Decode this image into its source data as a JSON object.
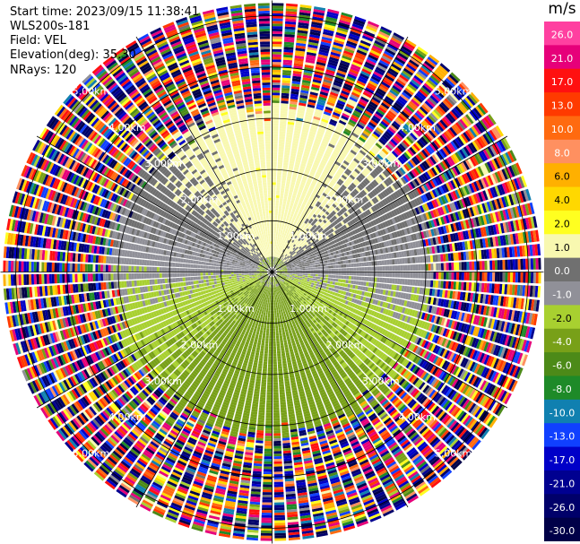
{
  "header": {
    "start_time": "Start time: 2023/09/15 11:38:41",
    "instrument": "WLS200s-181",
    "field": "Field: VEL",
    "elevation": "Elevation(deg): 35.30",
    "nrays": "NRays: 120"
  },
  "colorbar": {
    "unit": "m/s",
    "levels": [
      "26.0",
      "21.0",
      "17.0",
      "13.0",
      "10.0",
      "8.0",
      "6.0",
      "4.0",
      "2.0",
      "1.0",
      "0.0",
      "-1.0",
      "-2.0",
      "-4.0",
      "-6.0",
      "-8.0",
      "-10.0",
      "-13.0",
      "-17.0",
      "-21.0",
      "-26.0",
      "-30.0"
    ],
    "colors": [
      "#ff40a0",
      "#e6007a",
      "#ff1010",
      "#ff3a00",
      "#ff6a10",
      "#ff9060",
      "#ffb000",
      "#ffd800",
      "#ffff20",
      "#f8f8b0",
      "#707070",
      "#909098",
      "#a8d030",
      "#78a018",
      "#4c8a18",
      "#1e8a28",
      "#1080b0",
      "#1040ff",
      "#0000c8",
      "#000090",
      "#00006a",
      "#000048"
    ]
  },
  "chart_data": {
    "type": "heatmap",
    "subtype": "polar-ppi",
    "field": "VEL",
    "unit": "m/s",
    "elevation_deg": 35.3,
    "n_rays": 120,
    "max_range_km": 5.3,
    "range_rings": [
      {
        "km": 1.0,
        "label": "1.00km"
      },
      {
        "km": 2.0,
        "label": "2.00km"
      },
      {
        "km": 3.0,
        "label": "3.00km"
      },
      {
        "km": 4.0,
        "label": "4.00km"
      },
      {
        "km": 5.0,
        "label": "5.00km"
      }
    ],
    "spokes_deg": [
      0,
      30,
      60,
      90,
      120,
      150,
      180,
      210,
      240,
      270,
      300,
      330
    ],
    "pattern": {
      "near_core_km": 0.3,
      "signal_limit_km": 3.3,
      "approaching_azimuth_deg": 0,
      "receding_azimuth_deg": 210,
      "zero_band_azimuths_deg": [
        100,
        300
      ],
      "noise_beyond_km": 3.3
    }
  }
}
